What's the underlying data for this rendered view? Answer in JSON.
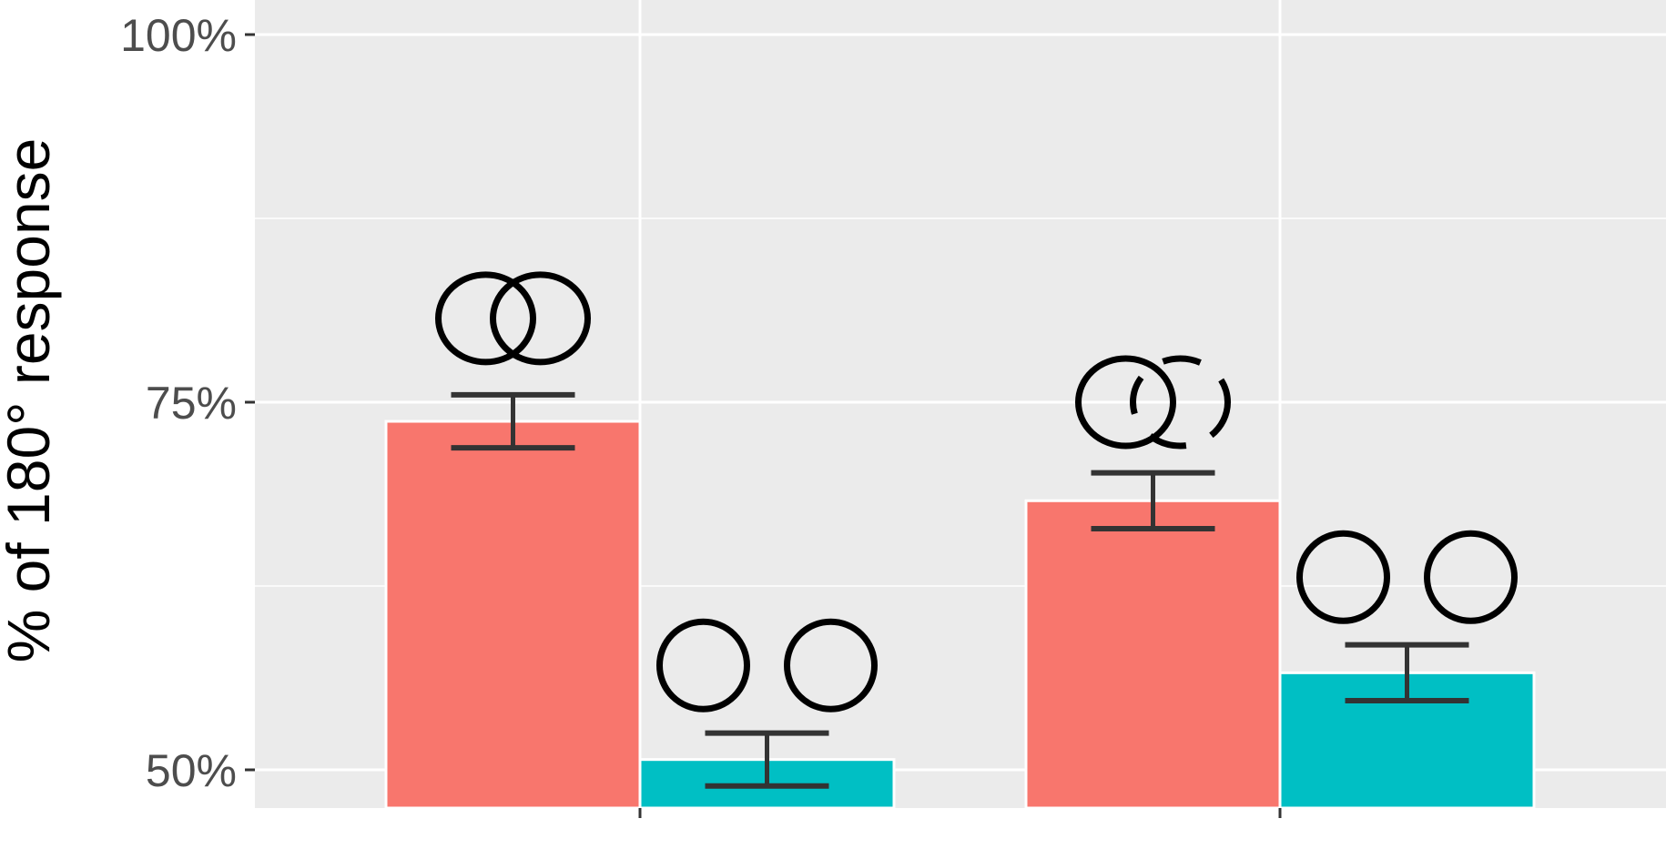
{
  "chart_data": {
    "type": "bar",
    "title": "",
    "xlabel": "",
    "ylabel": "% of 180° response",
    "ylim": [
      0.473,
      1.0
    ],
    "yticks": [
      {
        "value": 0.5,
        "label": "50%"
      },
      {
        "value": 0.75,
        "label": "75%"
      },
      {
        "value": 1.0,
        "label": "100%"
      }
    ],
    "yminor": [
      0.625,
      0.875
    ],
    "grid": true,
    "groups": 2,
    "series": [
      {
        "color": "#F8766D",
        "values": [
          0.737,
          0.683
        ],
        "error": [
          0.018,
          0.019
        ]
      },
      {
        "color": "#00BFC4",
        "values": [
          0.507,
          0.566
        ],
        "error": [
          0.018,
          0.019
        ]
      }
    ],
    "annotations": [
      {
        "group": 0,
        "series": 0,
        "y": 0.807,
        "circles": [
          "solid",
          "solid"
        ],
        "overlap": true
      },
      {
        "group": 0,
        "series": 1,
        "y": 0.571,
        "circles": [
          "solid",
          "solid"
        ],
        "overlap": false
      },
      {
        "group": 1,
        "series": 0,
        "y": 0.75,
        "circles": [
          "solid",
          "dashed"
        ],
        "overlap": true
      },
      {
        "group": 1,
        "series": 1,
        "y": 0.631,
        "circles": [
          "solid",
          "solid"
        ],
        "overlap": false
      }
    ]
  }
}
